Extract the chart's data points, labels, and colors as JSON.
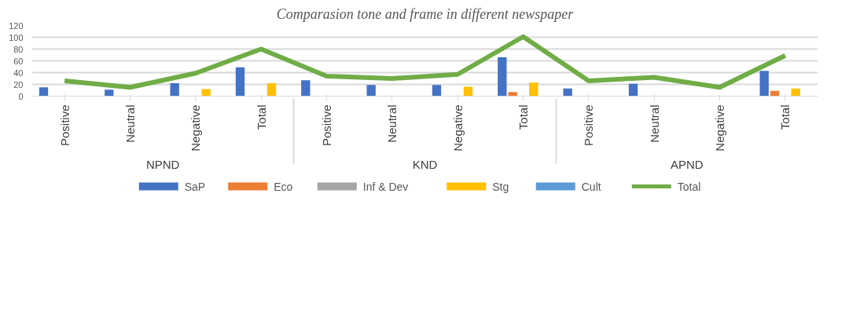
{
  "chart_data": {
    "type": "bar",
    "title": "Comparasion tone and frame in different newspaper",
    "categories": [
      "Positive",
      "Neutral",
      "Negative",
      "Total",
      "Positive",
      "Neutral",
      "Negative",
      "Total",
      "Positive",
      "Neutral",
      "Negative",
      "Total"
    ],
    "annotations": [
      "NPND",
      "KND",
      "APND"
    ],
    "series": [
      {
        "name": "SaP",
        "color": "#4472c4",
        "values": [
          15,
          11,
          22,
          49,
          27,
          19,
          19,
          66,
          13,
          21,
          null,
          43
        ]
      },
      {
        "name": "Eco",
        "color": "#ed7d31",
        "values": [
          null,
          null,
          null,
          null,
          null,
          null,
          null,
          7,
          null,
          null,
          null,
          9
        ]
      },
      {
        "name": "Inf & Dev",
        "color": "#a5a5a5",
        "values": [
          null,
          null,
          null,
          null,
          null,
          null,
          null,
          null,
          null,
          null,
          null,
          null
        ]
      },
      {
        "name": "Stg",
        "color": "#ffc000",
        "values": [
          null,
          null,
          12,
          22,
          null,
          null,
          16,
          23,
          null,
          null,
          null,
          13
        ]
      },
      {
        "name": "Cult",
        "color": "#5b9bd5",
        "values": [
          null,
          null,
          null,
          null,
          null,
          null,
          null,
          null,
          null,
          null,
          null,
          null
        ]
      },
      {
        "name": "Total",
        "type": "line",
        "color": "#70ad47",
        "values": [
          26,
          15,
          39,
          80,
          34,
          30,
          37,
          101,
          26,
          32,
          15,
          69
        ]
      }
    ],
    "ylim": [
      0,
      120
    ],
    "yticks": [
      0,
      20,
      40,
      60,
      80,
      100,
      120
    ],
    "grid": "y",
    "legend": "bottom"
  }
}
